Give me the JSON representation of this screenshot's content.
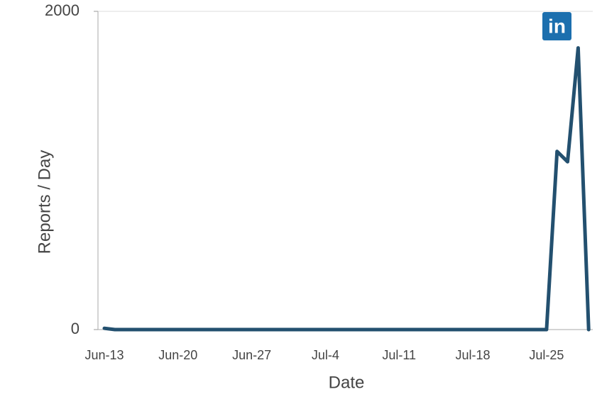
{
  "chart_data": {
    "type": "line",
    "x_label": "Date",
    "y_label": "Reports / Day",
    "badge": "in",
    "categories": [
      "Jun-13",
      null,
      null,
      null,
      null,
      null,
      null,
      "Jun-20",
      null,
      null,
      null,
      null,
      null,
      null,
      "Jun-27",
      null,
      null,
      null,
      null,
      null,
      null,
      "Jul-4",
      null,
      null,
      null,
      null,
      null,
      null,
      "Jul-11",
      null,
      null,
      null,
      null,
      null,
      null,
      "Jul-18",
      null,
      null,
      null,
      null,
      null,
      null,
      "Jul-25",
      null,
      null,
      null,
      null
    ],
    "series": [
      {
        "name": "Reports",
        "color": "#23506f",
        "values": [
          8,
          0,
          0,
          0,
          0,
          0,
          0,
          0,
          0,
          0,
          0,
          0,
          0,
          0,
          0,
          0,
          0,
          0,
          0,
          0,
          0,
          0,
          0,
          0,
          0,
          0,
          0,
          0,
          0,
          0,
          0,
          0,
          0,
          0,
          0,
          0,
          0,
          0,
          0,
          0,
          0,
          0,
          0,
          1120,
          1055,
          1770,
          0
        ]
      }
    ],
    "ylim": [
      0,
      2000
    ],
    "yticks": [
      0,
      2000
    ],
    "grid": true
  }
}
